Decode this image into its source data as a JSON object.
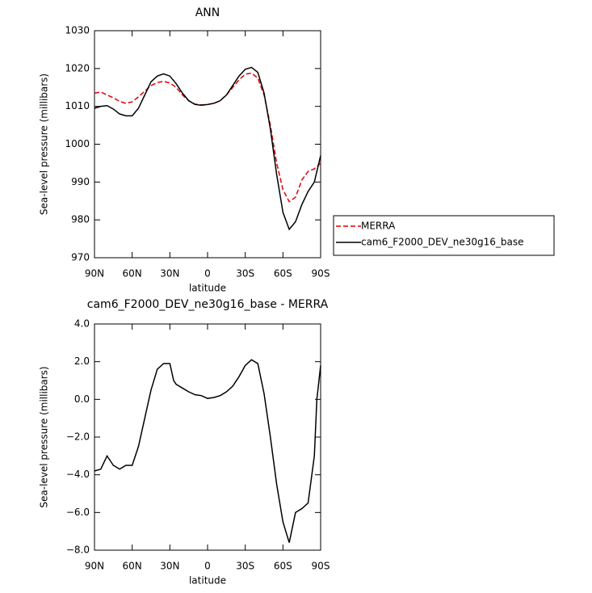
{
  "chart_data": [
    {
      "type": "line",
      "title": "ANN",
      "x_label": "latitude",
      "y_label": "Sea-level pressure (millibars)",
      "x": [
        90,
        85,
        80,
        75,
        70,
        65,
        60,
        55,
        50,
        45,
        40,
        35,
        30,
        25,
        20,
        15,
        10,
        5,
        0,
        -5,
        -10,
        -15,
        -20,
        -25,
        -30,
        -35,
        -40,
        -45,
        -50,
        -55,
        -60,
        -65,
        -70,
        -75,
        -80,
        -85,
        -90
      ],
      "series": [
        {
          "name": "MERRA",
          "color": "#e00000",
          "linestyle": "dashed",
          "values": [
            1013.5,
            1013.8,
            1013,
            1012.3,
            1011.3,
            1010.8,
            1011.2,
            1012.5,
            1014,
            1015.5,
            1016.3,
            1016.6,
            1016.2,
            1015,
            1013,
            1011.5,
            1010.6,
            1010.4,
            1010.5,
            1010.8,
            1011.5,
            1013,
            1015,
            1017,
            1018.5,
            1018.8,
            1017.5,
            1013,
            1005,
            995,
            988,
            984.8,
            986,
            990.5,
            992.8,
            993.5,
            995
          ]
        },
        {
          "name": "cam6_F2000_DEV_ne30g16_base",
          "color": "#000000",
          "linestyle": "solid",
          "values": [
            1009.5,
            1010,
            1010.2,
            1009.3,
            1008,
            1007.5,
            1007.5,
            1009.5,
            1013,
            1016.5,
            1018,
            1018.6,
            1018,
            1016,
            1013.5,
            1011.5,
            1010.5,
            1010.3,
            1010.5,
            1010.8,
            1011.5,
            1013,
            1015.5,
            1018,
            1019.8,
            1020.3,
            1019,
            1013.5,
            1004,
            992,
            982,
            977.5,
            979.5,
            984,
            987.5,
            990,
            997
          ]
        }
      ],
      "xlim": [
        90,
        -90
      ],
      "xticks": [
        {
          "value": 90,
          "label": "90N"
        },
        {
          "value": 60,
          "label": "60N"
        },
        {
          "value": 30,
          "label": "30N"
        },
        0,
        {
          "value": -30,
          "label": "30S"
        },
        {
          "value": -60,
          "label": "60S"
        },
        {
          "value": -90,
          "label": "90S"
        }
      ],
      "ylim": [
        970,
        1030
      ],
      "yticks": [
        970,
        980,
        990,
        1000,
        1010,
        1020,
        1030
      ],
      "legend": "right"
    },
    {
      "type": "line",
      "title": "cam6_F2000_DEV_ne30g16_base - MERRA",
      "x_label": "latitude",
      "y_label": "Sea-level pressure (millibars)",
      "x": [
        90,
        85,
        80,
        75,
        70,
        65,
        60,
        55,
        50,
        45,
        40,
        35,
        30,
        27,
        25,
        20,
        15,
        10,
        5,
        0,
        -5,
        -10,
        -15,
        -20,
        -25,
        -30,
        -35,
        -40,
        -45,
        -50,
        -55,
        -60,
        -65,
        -70,
        -75,
        -80,
        -85,
        -87,
        -90
      ],
      "values": [
        -3.8,
        -3.7,
        -3,
        -3.5,
        -3.7,
        -3.5,
        -3.5,
        -2.5,
        -1,
        0.5,
        1.6,
        1.9,
        1.9,
        1,
        0.8,
        0.6,
        0.4,
        0.25,
        0.2,
        0.05,
        0.1,
        0.2,
        0.4,
        0.7,
        1.2,
        1.8,
        2.1,
        1.9,
        0.3,
        -2,
        -4.5,
        -6.5,
        -7.6,
        -6,
        -5.8,
        -5.5,
        -3,
        0,
        1.8
      ],
      "color": "#000000",
      "xlim": [
        90,
        -90
      ],
      "xticks": [
        {
          "value": 90,
          "label": "90N"
        },
        {
          "value": 60,
          "label": "60N"
        },
        {
          "value": 30,
          "label": "30N"
        },
        0,
        {
          "value": -30,
          "label": "30S"
        },
        {
          "value": -60,
          "label": "60S"
        },
        {
          "value": -90,
          "label": "90S"
        }
      ],
      "ylim": [
        -8,
        4
      ],
      "yticks": [
        {
          "value": -8,
          "label": "−8.0"
        },
        {
          "value": -6,
          "label": "−6.0"
        },
        {
          "value": -4,
          "label": "−4.0"
        },
        {
          "value": -2,
          "label": "−2.0"
        },
        {
          "value": 0,
          "label": "0.0"
        },
        {
          "value": 2,
          "label": "2.0"
        },
        {
          "value": 4,
          "label": "4.0"
        }
      ]
    }
  ]
}
